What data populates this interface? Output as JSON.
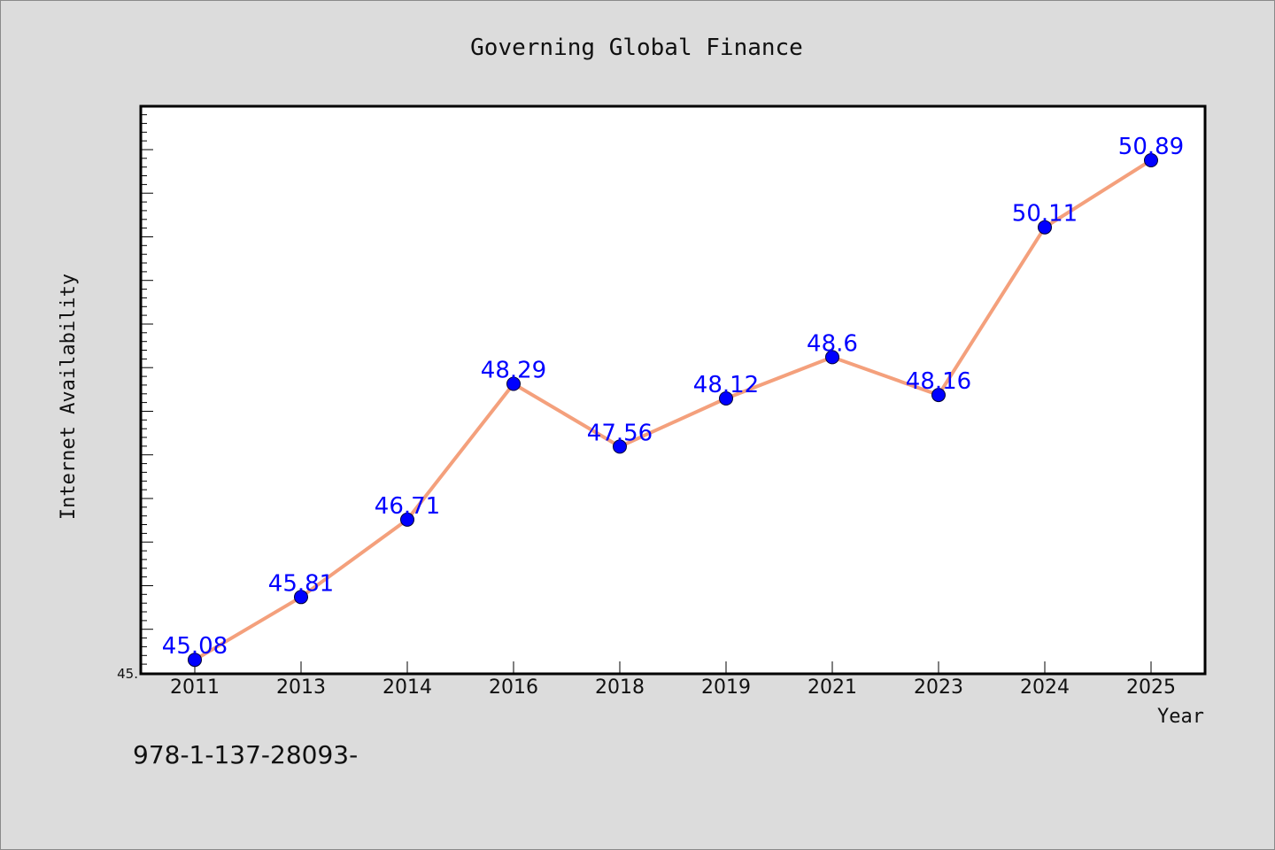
{
  "chart_data": {
    "type": "line",
    "title": "Governing Global Finance",
    "xlabel": "Year",
    "ylabel": "Internet Availability",
    "categories": [
      "2011",
      "2013",
      "2014",
      "2016",
      "2018",
      "2019",
      "2021",
      "2023",
      "2024",
      "2025"
    ],
    "series": [
      {
        "values": [
          45.08,
          45.81,
          46.71,
          48.29,
          47.56,
          48.12,
          48.6,
          48.16,
          50.11,
          50.89
        ]
      }
    ],
    "data_labels": [
      "45.08",
      "45.81",
      "46.71",
      "48.29",
      "47.56",
      "48.12",
      "48.6",
      "48.16",
      "50.11",
      "50.89"
    ],
    "ylim": [
      45.0,
      51.5
    ],
    "y_tick_labels": [
      "45."
    ],
    "grid": false,
    "colors": {
      "line": "#f4a07c",
      "marker": "#0000ff",
      "label": "#0000ff",
      "plot_bg": "#ffffff",
      "page_bg": "#dcdcdc"
    }
  },
  "footer": {
    "isbn": "978-1-137-28093-"
  }
}
